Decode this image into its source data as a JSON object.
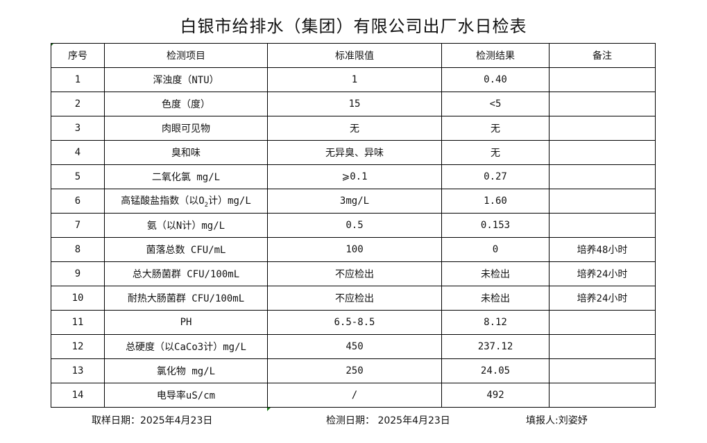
{
  "title": "白银市给排水（集团）有限公司出厂水日检表",
  "headers": [
    "序号",
    "检测项目",
    "标准限值",
    "检测结果",
    "备注"
  ],
  "rows": [
    {
      "no": "1",
      "item": "浑浊度（NTU）",
      "limit": "1",
      "result": "0.40",
      "note": ""
    },
    {
      "no": "2",
      "item": "色度（度）",
      "limit": "15",
      "result": "<5",
      "note": ""
    },
    {
      "no": "3",
      "item": "肉眼可见物",
      "limit": "无",
      "result": "无",
      "note": ""
    },
    {
      "no": "4",
      "item": "臭和味",
      "limit": "无异臭、异味",
      "result": "无",
      "note": ""
    },
    {
      "no": "5",
      "item": "二氧化氯 mg/L",
      "limit": "⩾0.1",
      "result": "0.27",
      "note": ""
    },
    {
      "no": "6",
      "item": "高锰酸盐指数（以O",
      "item_sub": "2",
      "item_tail": "计）mg/L",
      "limit": "3mg/L",
      "result": "1.60",
      "note": ""
    },
    {
      "no": "7",
      "item": "氨（以N计）mg/L",
      "limit": "0.5",
      "result": "0.153",
      "note": ""
    },
    {
      "no": "8",
      "item": "菌落总数 CFU/mL",
      "limit": "100",
      "result": "0",
      "note": "培养48小时"
    },
    {
      "no": "9",
      "item": "总大肠菌群 CFU/100mL",
      "limit": "不应检出",
      "result": "未检出",
      "note": "培养24小时"
    },
    {
      "no": "10",
      "item": "耐热大肠菌群 CFU/100mL",
      "limit": "不应检出",
      "result": "未检出",
      "note": "培养24小时"
    },
    {
      "no": "11",
      "item": "PH",
      "limit": "6.5-8.5",
      "result": "8.12",
      "note": ""
    },
    {
      "no": "12",
      "item": "总硬度（以CaCo3计）mg/L",
      "limit": "450",
      "result": "237.12",
      "note": ""
    },
    {
      "no": "13",
      "item": "氯化物 mg/L",
      "limit": "250",
      "result": "24.05",
      "note": ""
    },
    {
      "no": "14",
      "item": "电导率uS/cm",
      "limit": "/",
      "result": "492",
      "note": ""
    }
  ],
  "footer": {
    "sample_date": "取样日期：2025年4月23日",
    "test_date": "检测日期： 2025年4月23日",
    "reporter": "填报人:刘姿妤"
  }
}
